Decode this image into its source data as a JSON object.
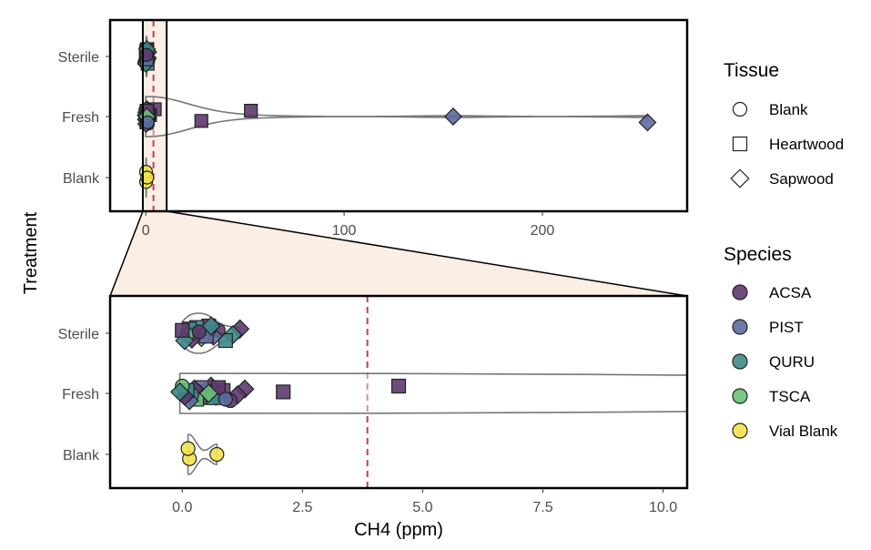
{
  "chart_data": {
    "type": "scatter",
    "ylabel": "Treatment",
    "xlabel": "CH4 (ppm)",
    "categories": [
      "Sterile",
      "Fresh",
      "Blank"
    ],
    "top_panel": {
      "xlim": [
        -18,
        273
      ],
      "xticks": [
        0,
        100,
        200
      ],
      "tick_labels": [
        "0",
        "100",
        "200"
      ],
      "zoom_window": [
        -1.5,
        10.5
      ]
    },
    "bottom_panel": {
      "xlim": [
        -1.5,
        10.5
      ],
      "xticks": [
        0.0,
        2.5,
        5.0,
        7.5,
        10.0
      ],
      "tick_labels": [
        "0.0",
        "2.5",
        "5.0",
        "7.5",
        "10.0"
      ]
    },
    "reference_line": {
      "x": 3.85,
      "style": "dashed",
      "color": "#c43c5a"
    },
    "legend": {
      "placement": "right",
      "tissue_title": "Tissue",
      "tissue": [
        {
          "label": "Blank",
          "shape": "circle"
        },
        {
          "label": "Heartwood",
          "shape": "square"
        },
        {
          "label": "Sapwood",
          "shape": "diamond"
        }
      ],
      "species_title": "Species",
      "species": [
        {
          "label": "ACSA",
          "color": "#5d3a6e"
        },
        {
          "label": "PIST",
          "color": "#5e6b9e"
        },
        {
          "label": "QURU",
          "color": "#3f8a8a"
        },
        {
          "label": "TSCA",
          "color": "#6cc07a"
        },
        {
          "label": "Vial Blank",
          "color": "#f2e34c"
        }
      ]
    },
    "points": [
      {
        "treatment": "Fresh",
        "species": "ACSA",
        "tissue": "Heartwood",
        "x": 4.5
      },
      {
        "treatment": "Fresh",
        "species": "ACSA",
        "tissue": "Heartwood",
        "x": 2.1
      },
      {
        "treatment": "Fresh",
        "species": "ACSA",
        "tissue": "Heartwood",
        "x": 28
      },
      {
        "treatment": "Fresh",
        "species": "ACSA",
        "tissue": "Heartwood",
        "x": 53
      },
      {
        "treatment": "Fresh",
        "species": "PIST",
        "tissue": "Sapwood",
        "x": 155
      },
      {
        "treatment": "Fresh",
        "species": "PIST",
        "tissue": "Sapwood",
        "x": 253
      },
      {
        "treatment": "Fresh",
        "species": "ACSA",
        "tissue": "Sapwood",
        "x": 1.3
      },
      {
        "treatment": "Fresh",
        "species": "ACSA",
        "tissue": "Sapwood",
        "x": 1.15
      },
      {
        "treatment": "Fresh",
        "species": "ACSA",
        "tissue": "Blank",
        "x": 1.0
      },
      {
        "treatment": "Fresh",
        "species": "ACSA",
        "tissue": "Heartwood",
        "x": 0.85
      },
      {
        "treatment": "Fresh",
        "species": "PIST",
        "tissue": "Sapwood",
        "x": 0.7
      },
      {
        "treatment": "Fresh",
        "species": "ACSA",
        "tissue": "Sapwood",
        "x": 0.6
      },
      {
        "treatment": "Fresh",
        "species": "QURU",
        "tissue": "Heartwood",
        "x": 0.5
      },
      {
        "treatment": "Fresh",
        "species": "ACSA",
        "tissue": "Blank",
        "x": 0.45
      },
      {
        "treatment": "Fresh",
        "species": "PIST",
        "tissue": "Heartwood",
        "x": 0.4
      },
      {
        "treatment": "Fresh",
        "species": "QURU",
        "tissue": "Sapwood",
        "x": 0.35
      },
      {
        "treatment": "Fresh",
        "species": "TSCA",
        "tissue": "Heartwood",
        "x": 0.3
      },
      {
        "treatment": "Fresh",
        "species": "ACSA",
        "tissue": "Sapwood",
        "x": 0.25
      },
      {
        "treatment": "Fresh",
        "species": "QURU",
        "tissue": "Blank",
        "x": 0.2
      },
      {
        "treatment": "Fresh",
        "species": "PIST",
        "tissue": "Sapwood",
        "x": 0.15
      },
      {
        "treatment": "Fresh",
        "species": "QURU",
        "tissue": "Heartwood",
        "x": 0.1
      },
      {
        "treatment": "Fresh",
        "species": "ACSA",
        "tissue": "Sapwood",
        "x": 0.05
      },
      {
        "treatment": "Fresh",
        "species": "TSCA",
        "tissue": "Blank",
        "x": 0.0
      },
      {
        "treatment": "Fresh",
        "species": "QURU",
        "tissue": "Sapwood",
        "x": -0.05
      },
      {
        "treatment": "Fresh",
        "species": "QURU",
        "tissue": "Heartwood",
        "x": 0.65
      },
      {
        "treatment": "Fresh",
        "species": "ACSA",
        "tissue": "Heartwood",
        "x": 0.75
      },
      {
        "treatment": "Fresh",
        "species": "TSCA",
        "tissue": "Sapwood",
        "x": 0.55
      },
      {
        "treatment": "Fresh",
        "species": "PIST",
        "tissue": "Blank",
        "x": 0.9
      },
      {
        "treatment": "Sterile",
        "species": "ACSA",
        "tissue": "Sapwood",
        "x": 1.2
      },
      {
        "treatment": "Sterile",
        "species": "QURU",
        "tissue": "Sapwood",
        "x": 1.05
      },
      {
        "treatment": "Sterile",
        "species": "QURU",
        "tissue": "Heartwood",
        "x": 0.9
      },
      {
        "treatment": "Sterile",
        "species": "ACSA",
        "tissue": "Blank",
        "x": 0.75
      },
      {
        "treatment": "Sterile",
        "species": "PIST",
        "tissue": "Sapwood",
        "x": 0.65
      },
      {
        "treatment": "Sterile",
        "species": "ACSA",
        "tissue": "Heartwood",
        "x": 0.55
      },
      {
        "treatment": "Sterile",
        "species": "QURU",
        "tissue": "Blank",
        "x": 0.45
      },
      {
        "treatment": "Sterile",
        "species": "TSCA",
        "tissue": "Sapwood",
        "x": 0.4
      },
      {
        "treatment": "Sterile",
        "species": "QURU",
        "tissue": "Heartwood",
        "x": 0.3
      },
      {
        "treatment": "Sterile",
        "species": "PIST",
        "tissue": "Blank",
        "x": 0.25
      },
      {
        "treatment": "Sterile",
        "species": "ACSA",
        "tissue": "Sapwood",
        "x": 0.2
      },
      {
        "treatment": "Sterile",
        "species": "QURU",
        "tissue": "Heartwood",
        "x": 0.15
      },
      {
        "treatment": "Sterile",
        "species": "TSCA",
        "tissue": "Blank",
        "x": 0.1
      },
      {
        "treatment": "Sterile",
        "species": "QURU",
        "tissue": "Sapwood",
        "x": 0.05
      },
      {
        "treatment": "Sterile",
        "species": "ACSA",
        "tissue": "Heartwood",
        "x": 0.0
      },
      {
        "treatment": "Sterile",
        "species": "PIST",
        "tissue": "Heartwood",
        "x": 0.5
      },
      {
        "treatment": "Sterile",
        "species": "QURU",
        "tissue": "Sapwood",
        "x": 0.6
      },
      {
        "treatment": "Sterile",
        "species": "ACSA",
        "tissue": "Blank",
        "x": 0.35
      },
      {
        "treatment": "Blank",
        "species": "Vial Blank",
        "tissue": "Blank",
        "x": 0.15
      },
      {
        "treatment": "Blank",
        "species": "Vial Blank",
        "tissue": "Blank",
        "x": 0.12
      },
      {
        "treatment": "Blank",
        "species": "Vial Blank",
        "tissue": "Blank",
        "x": 0.72
      }
    ]
  }
}
